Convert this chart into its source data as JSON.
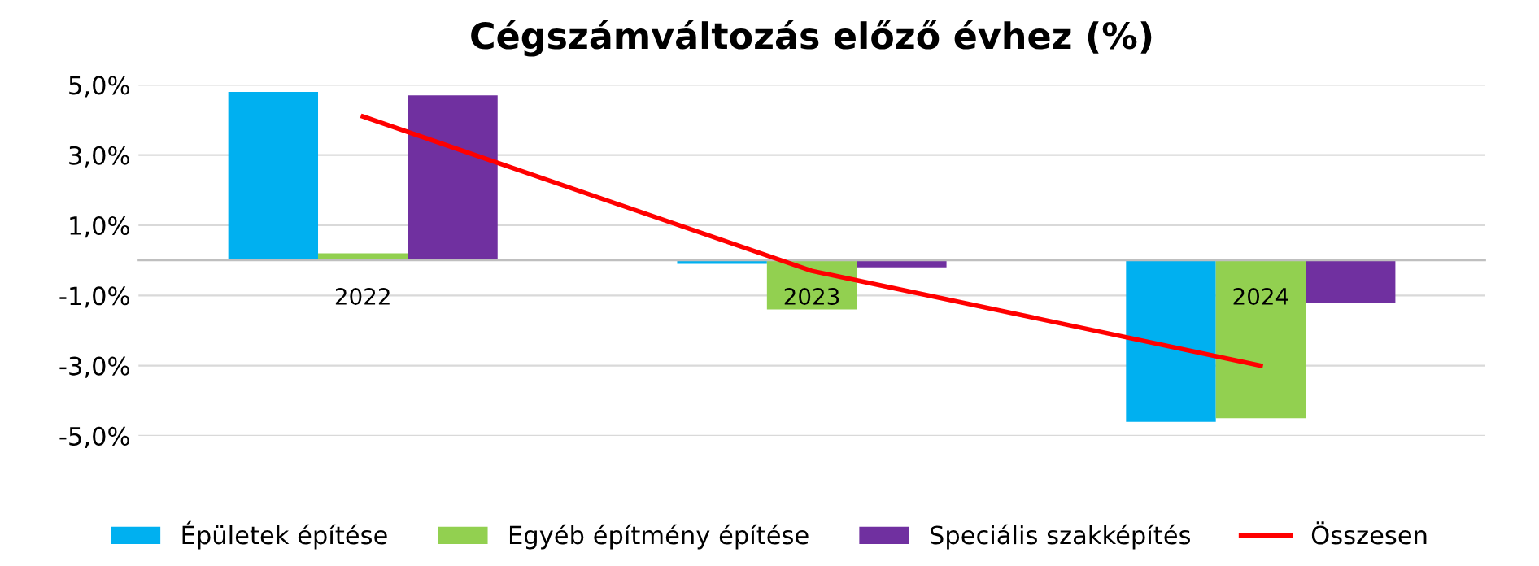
{
  "chart_data": {
    "type": "bar",
    "title": "Cégszámváltozás előző évhez (%)",
    "categories": [
      "2022",
      "2023",
      "2024"
    ],
    "series": [
      {
        "name": "Épületek építése",
        "color": "#00b0f0",
        "values": [
          4.8,
          -0.1,
          -4.6
        ]
      },
      {
        "name": "Egyéb építmény építése",
        "color": "#92d050",
        "values": [
          0.2,
          -1.4,
          -4.5
        ]
      },
      {
        "name": "Speciális szakképítés",
        "color": "#7030a0",
        "values": [
          4.7,
          -0.2,
          -1.2
        ]
      },
      {
        "name": "Összesen",
        "color": "#ff0000",
        "type": "line",
        "values": [
          4.1,
          -0.3,
          -3.0
        ]
      }
    ],
    "ylim": [
      -5,
      5
    ],
    "yticks": [
      {
        "value": -5,
        "label": "-5,0%"
      },
      {
        "value": -3,
        "label": "-3,0%"
      },
      {
        "value": -1,
        "label": "-1,0%"
      },
      {
        "value": 1,
        "label": "1,0%"
      },
      {
        "value": 3,
        "label": "3,0%"
      },
      {
        "value": 5,
        "label": "5,0%"
      }
    ],
    "grid": "y",
    "legend": "bottom",
    "marker": "none",
    "line_style": "solid"
  }
}
